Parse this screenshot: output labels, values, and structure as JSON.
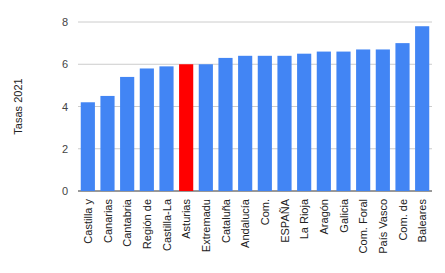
{
  "chart_data": {
    "type": "bar",
    "y_label": "Tasas 2021",
    "categories": [
      "Castilla y",
      "Canarias",
      "Cantabria",
      "Región de",
      "Castilla-La",
      "Asturias",
      "Extremadu",
      "Cataluña",
      "Andalucía",
      "Com.",
      "ESPAÑA",
      "La Rioja",
      "Aragón",
      "Galicia",
      "Com. Foral",
      "País Vasco",
      "Com. de",
      "Baleares"
    ],
    "values": [
      4.2,
      4.5,
      5.4,
      5.8,
      5.9,
      6.0,
      6.0,
      6.3,
      6.4,
      6.4,
      6.4,
      6.5,
      6.6,
      6.6,
      6.7,
      6.7,
      7.0,
      7.8
    ],
    "colors": [
      "#4285f4",
      "#4285f4",
      "#4285f4",
      "#4285f4",
      "#4285f4",
      "#ff0000",
      "#4285f4",
      "#4285f4",
      "#4285f4",
      "#4285f4",
      "#4285f4",
      "#4285f4",
      "#4285f4",
      "#4285f4",
      "#4285f4",
      "#4285f4",
      "#4285f4",
      "#4285f4"
    ],
    "ylim": [
      0,
      8
    ],
    "yticks": [
      0,
      2,
      4,
      6,
      8
    ],
    "grid": true
  }
}
